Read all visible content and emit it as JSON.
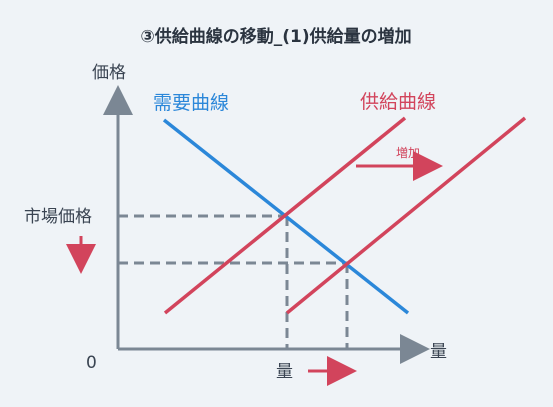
{
  "title": "③供給曲線の移動_(1)供給量の増加",
  "axes": {
    "y_label": "価格",
    "x_label": "量",
    "origin": "0"
  },
  "labels": {
    "demand": "需要曲線",
    "supply": "供給曲線",
    "increase": "増加",
    "market_price": "市場価格",
    "quantity_bottom": "量"
  },
  "colors": {
    "background": "#eff3f7",
    "axis": "#7b8794",
    "demand": "#2b87d9",
    "supply": "#d2445c",
    "guide": "#7b8794"
  }
}
